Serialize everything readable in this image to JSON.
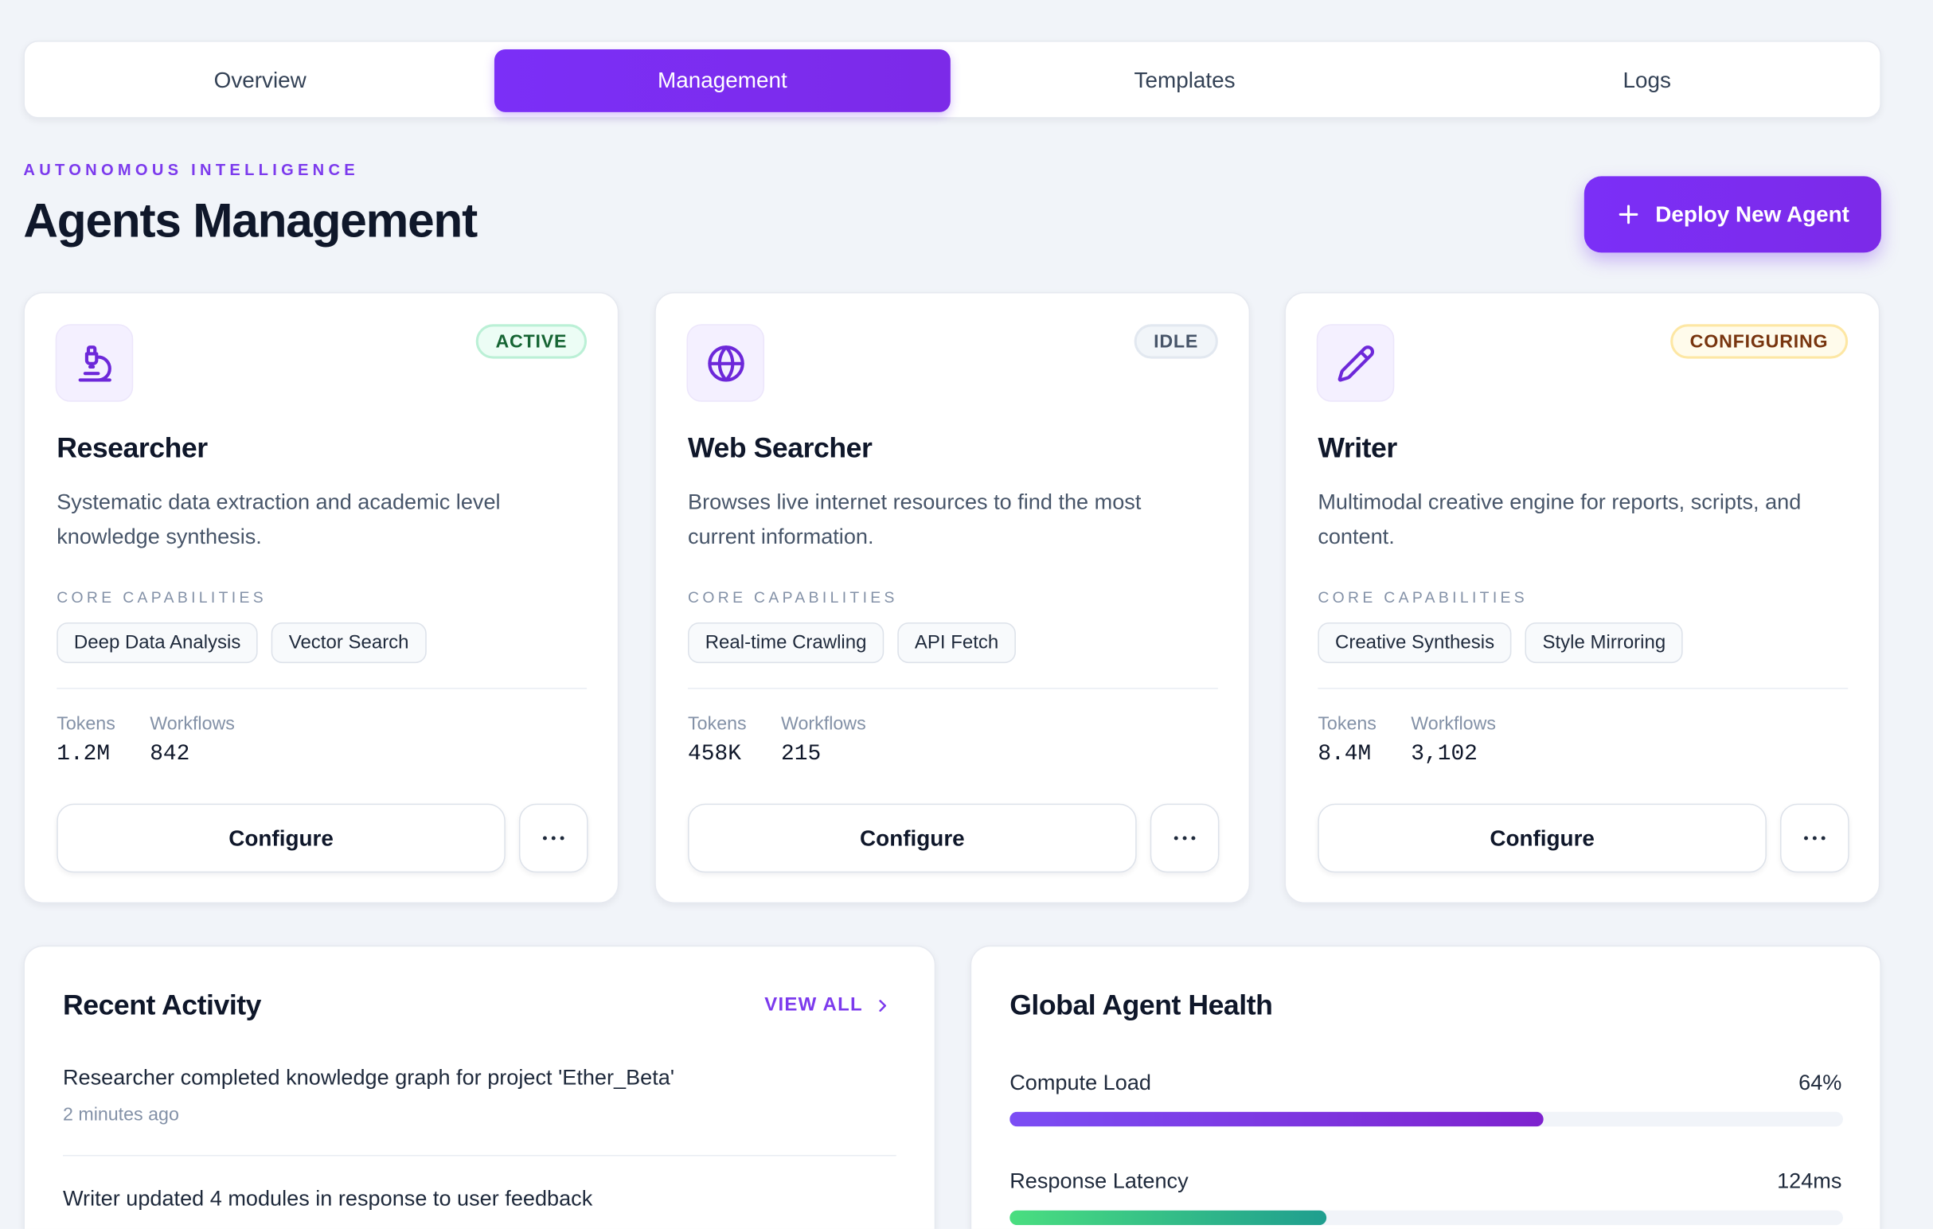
{
  "tabs": [
    "Overview",
    "Management",
    "Templates",
    "Logs"
  ],
  "header": {
    "eyebrow": "AUTONOMOUS INTELLIGENCE",
    "title": "Agents Management",
    "button": "Deploy New Agent"
  },
  "agents": [
    {
      "name": "Researcher",
      "status": "ACTIVE",
      "description": "Systematic data extraction and academic level knowledge synthesis.",
      "capabilities_label": "CORE CAPABILITIES",
      "capabilities": [
        "Deep Data Analysis",
        "Vector Search"
      ],
      "stats": [
        {
          "label": "Tokens",
          "value": "1.2M"
        },
        {
          "label": "Workflows",
          "value": "842"
        }
      ],
      "action": "Configure"
    },
    {
      "name": "Web Searcher",
      "status": "IDLE",
      "description": "Browses live internet resources to find the most current information.",
      "capabilities_label": "CORE CAPABILITIES",
      "capabilities": [
        "Real-time Crawling",
        "API Fetch"
      ],
      "stats": [
        {
          "label": "Tokens",
          "value": "458K"
        },
        {
          "label": "Workflows",
          "value": "215"
        }
      ],
      "action": "Configure"
    },
    {
      "name": "Writer",
      "status": "CONFIGURING",
      "description": "Multimodal creative engine for reports, scripts, and content.",
      "capabilities_label": "CORE CAPABILITIES",
      "capabilities": [
        "Creative Synthesis",
        "Style Mirroring"
      ],
      "stats": [
        {
          "label": "Tokens",
          "value": "8.4M"
        },
        {
          "label": "Workflows",
          "value": "3,102"
        }
      ],
      "action": "Configure"
    }
  ],
  "activity": {
    "title": "Recent Activity",
    "link": "VIEW ALL",
    "items": [
      {
        "text": "Researcher completed knowledge graph for project 'Ether_Beta'",
        "time": "2 minutes ago"
      },
      {
        "text": "Writer updated 4 modules in response to user feedback"
      }
    ]
  },
  "health": {
    "title": "Global Agent Health",
    "metrics": [
      {
        "label": "Compute Load",
        "value": "64%",
        "bar_percent": 64
      },
      {
        "label": "Response Latency",
        "value": "124ms",
        "bar_percent": 38
      }
    ]
  }
}
